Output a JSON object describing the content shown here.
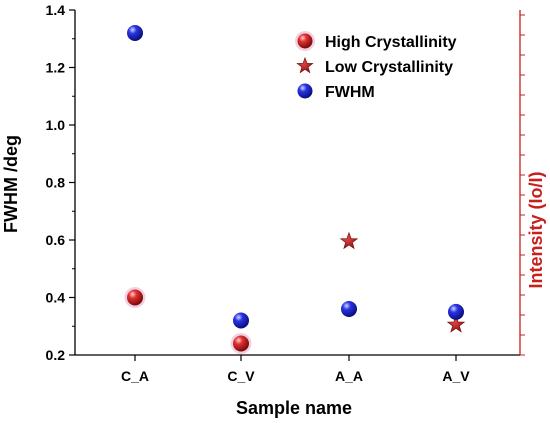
{
  "chart_data": {
    "type": "scatter",
    "categories": [
      "C_A",
      "C_V",
      "A_A",
      "A_V"
    ],
    "xlabel": "Sample name",
    "ylabel": "FWHM /deg",
    "y2label": "Intensity (Io/I)",
    "ylim": [
      0.2,
      1.4
    ],
    "yticks": [
      "0.2",
      "0.4",
      "0.6",
      "0.8",
      "1.0",
      "1.2",
      "1.4"
    ],
    "legend_position": "top-right",
    "series": [
      {
        "name": "High Crystallinity",
        "marker": "sphere",
        "color": "#d42020",
        "values": [
          0.4,
          0.24,
          null,
          null
        ]
      },
      {
        "name": "Low Crystallinity",
        "marker": "star",
        "color": "#b01818",
        "values": [
          null,
          null,
          0.595,
          0.305
        ]
      },
      {
        "name": "FWHM",
        "marker": "sphere",
        "color": "#1a22d8",
        "values": [
          1.32,
          0.32,
          0.36,
          0.35
        ]
      }
    ],
    "colors": {
      "left_axis": "#000000",
      "right_axis": "#c8201c"
    }
  }
}
